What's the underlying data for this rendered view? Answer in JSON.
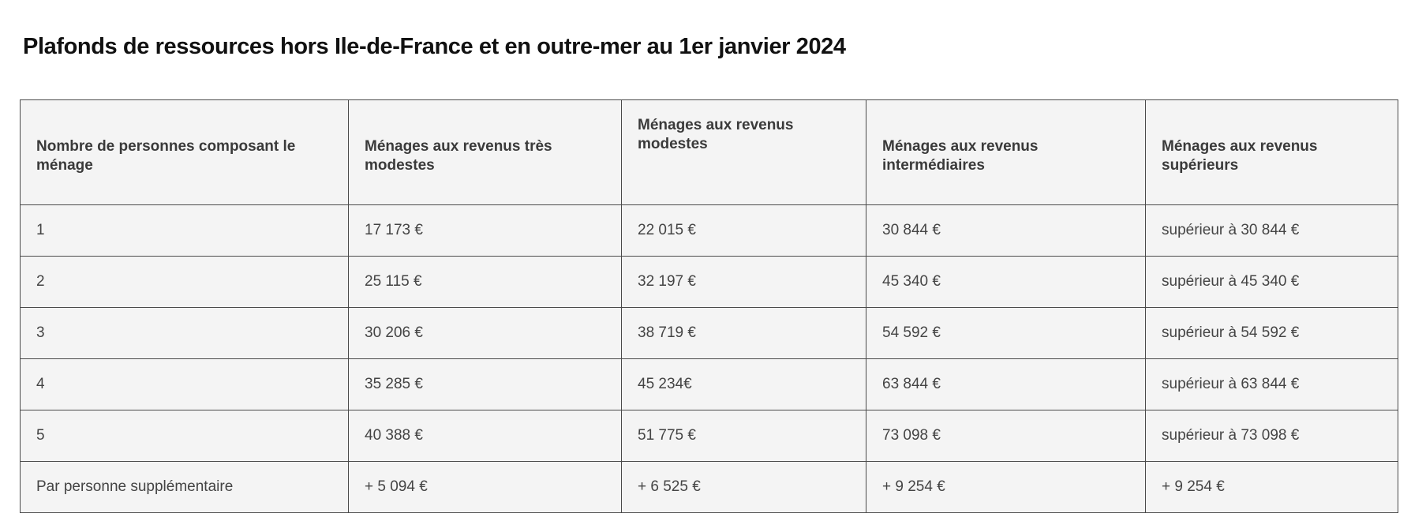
{
  "title": "Plafonds de ressources hors Ile-de-France et en outre-mer au 1er janvier 2024",
  "table": {
    "headers": [
      "Nombre de personnes composant le ménage",
      "Ménages aux revenus très modestes",
      "Ménages aux revenus modestes",
      "Ménages aux revenus intermédiaires",
      "Ménages aux revenus supérieurs"
    ],
    "rows": [
      [
        "1",
        "17 173 €",
        "22 015 €",
        "30 844 €",
        "supérieur à 30 844 €"
      ],
      [
        "2",
        "25 115 €",
        "32 197 €",
        "45 340 €",
        "supérieur à 45 340 €"
      ],
      [
        "3",
        "30 206 €",
        "38 719 €",
        "54 592 €",
        "supérieur à 54 592 €"
      ],
      [
        "4",
        "35 285 €",
        "45 234€",
        "63 844 €",
        "supérieur à 63 844 €"
      ],
      [
        "5",
        "40 388 €",
        "51 775 €",
        "73 098 €",
        "supérieur à 73 098 €"
      ],
      [
        "Par personne supplémentaire",
        "+ 5 094 €",
        "+ 6 525 €",
        "+ 9 254 €",
        "+ 9 254 €"
      ]
    ]
  }
}
